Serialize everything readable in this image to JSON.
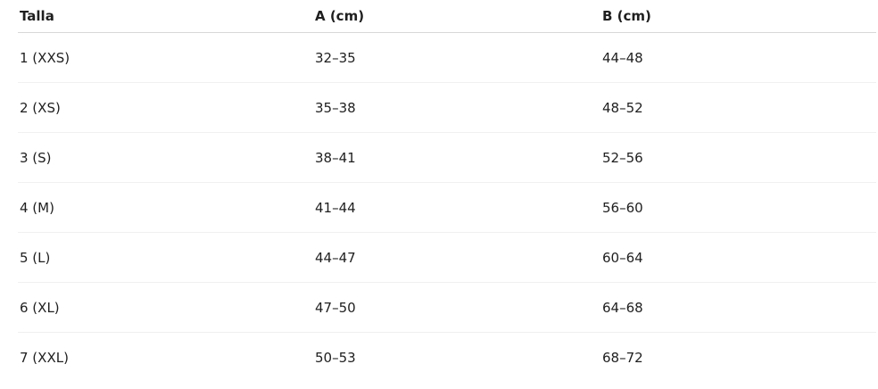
{
  "table": {
    "headers": [
      "Talla",
      "A (cm)",
      "B (cm)"
    ],
    "rows": [
      [
        "1 (XXS)",
        "32–35",
        "44–48"
      ],
      [
        "2 (XS)",
        "35–38",
        "48–52"
      ],
      [
        "3 (S)",
        "38–41",
        "52–56"
      ],
      [
        "4 (M)",
        "41–44",
        "56–60"
      ],
      [
        "5 (L)",
        "44–47",
        "60–64"
      ],
      [
        "6 (XL)",
        "47–50",
        "64–68"
      ],
      [
        "7 (XXL)",
        "50–53",
        "68–72"
      ]
    ]
  }
}
